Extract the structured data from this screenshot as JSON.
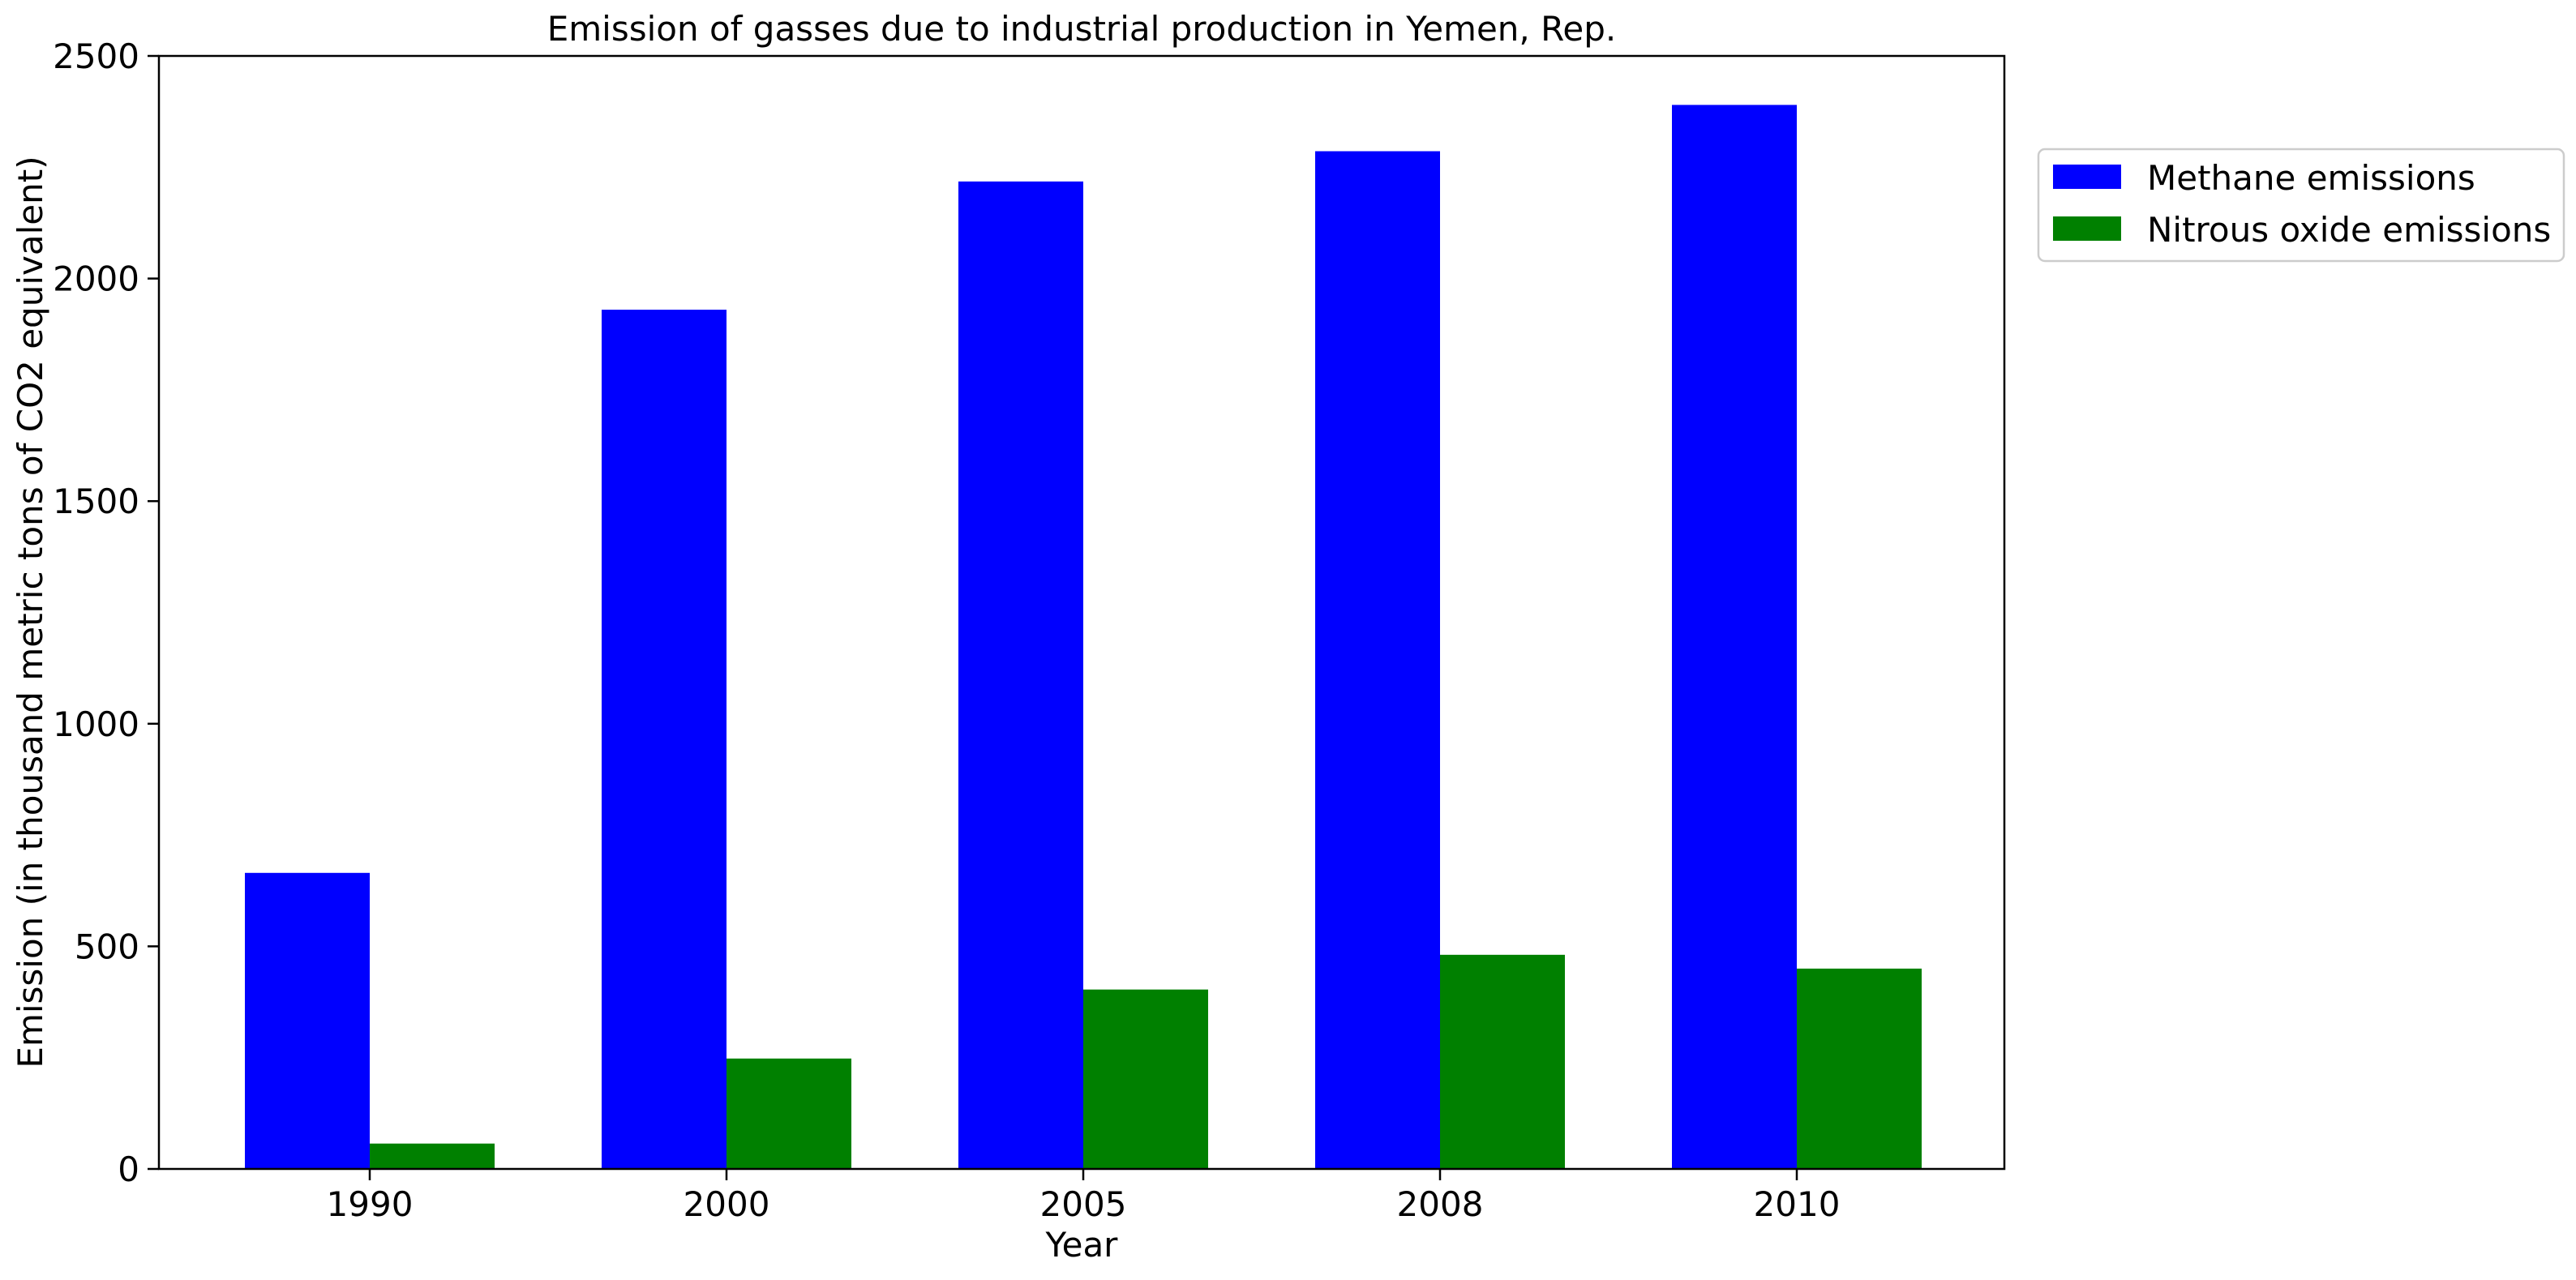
{
  "chart_data": {
    "type": "bar",
    "title": "Emission of gasses due to industrial production in Yemen, Rep.",
    "xlabel": "Year",
    "ylabel": "Emission (in thousand metric tons of CO2 equivalent)",
    "categories": [
      "1990",
      "2000",
      "2005",
      "2008",
      "2010"
    ],
    "series": [
      {
        "name": "Methane emissions",
        "color": "#0000ff",
        "values": [
          665,
          1930,
          2218,
          2286,
          2390
        ]
      },
      {
        "name": "Nitrous oxide emissions",
        "color": "#008000",
        "values": [
          57,
          248,
          403,
          481,
          450
        ]
      }
    ],
    "ylim": [
      0,
      2500
    ],
    "yticks": [
      0,
      500,
      1000,
      1500,
      2000,
      2500
    ],
    "grid": false,
    "legend_position": "outside-top-right"
  }
}
